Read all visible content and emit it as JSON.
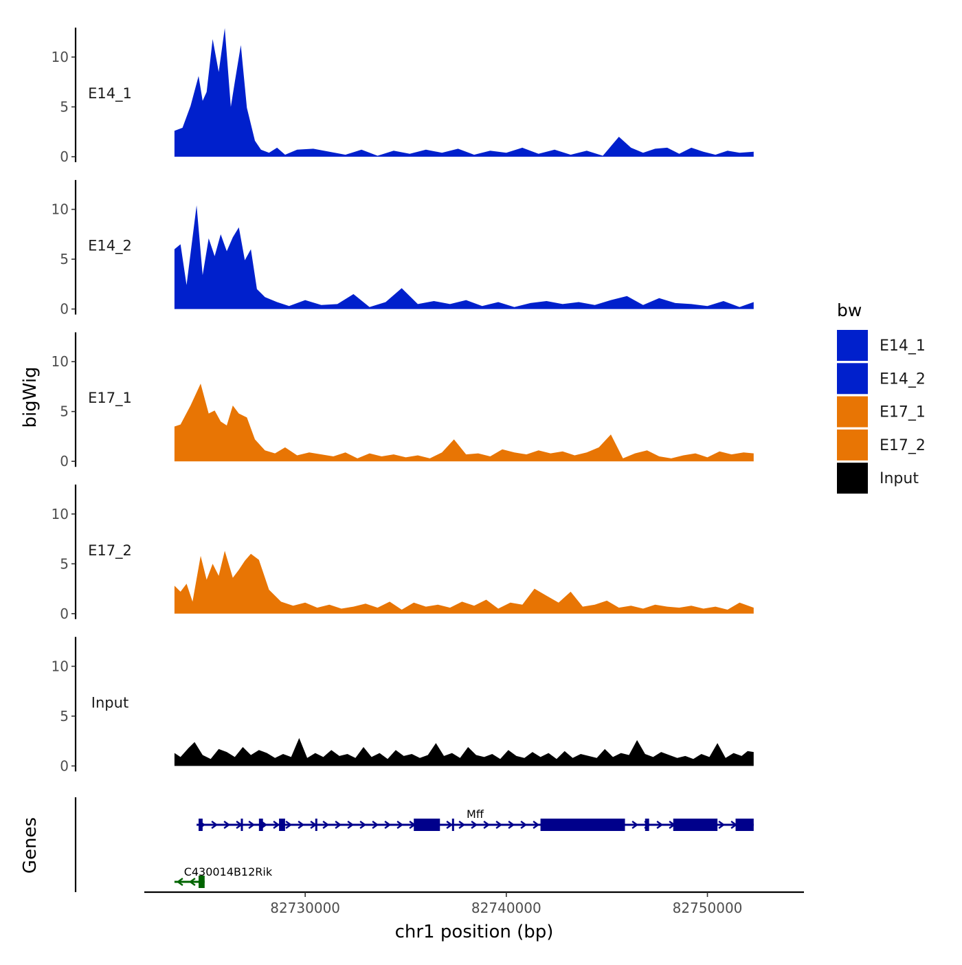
{
  "chart_data": {
    "type": "area",
    "title": "",
    "xlabel": "chr1 position (bp)",
    "ylabel": "bigWig",
    "genes_label": "Genes",
    "xlim": [
      82722000,
      82754800
    ],
    "data_range": [
      82723500,
      82752300
    ],
    "ylim": [
      0,
      13.5
    ],
    "y_ticks": [
      0,
      5,
      10
    ],
    "x_ticks": [
      82730000,
      82740000,
      82750000
    ],
    "x_tick_labels": [
      "82730000",
      "82740000",
      "82750000"
    ],
    "legend": {
      "title": "bw",
      "entries": [
        {
          "name": "E14_1",
          "color": "#0020CC"
        },
        {
          "name": "E14_2",
          "color": "#0020CC"
        },
        {
          "name": "E17_1",
          "color": "#E87504"
        },
        {
          "name": "E17_2",
          "color": "#E87504"
        },
        {
          "name": "Input",
          "color": "#000000"
        }
      ]
    },
    "series": [
      {
        "name": "E14_1",
        "color": "#0020CC",
        "x": [
          82723500,
          82723900,
          82724300,
          82724700,
          82724900,
          82725100,
          82725400,
          82725700,
          82726000,
          82726300,
          82726500,
          82726800,
          82727100,
          82727500,
          82727800,
          82728200,
          82728600,
          82729000,
          82729600,
          82730400,
          82731200,
          82732000,
          82732800,
          82733600,
          82734400,
          82735200,
          82736000,
          82736800,
          82737600,
          82738400,
          82739200,
          82740000,
          82740800,
          82741600,
          82742400,
          82743200,
          82744000,
          82744800,
          82745600,
          82746200,
          82746800,
          82747400,
          82748000,
          82748600,
          82749200,
          82749800,
          82750400,
          82751000,
          82751600,
          82752300
        ],
        "y": [
          2.6,
          2.9,
          5.1,
          8.1,
          5.6,
          6.5,
          11.8,
          8.5,
          12.9,
          5.0,
          7.5,
          11.2,
          4.9,
          1.6,
          0.7,
          0.4,
          0.9,
          0.2,
          0.7,
          0.8,
          0.5,
          0.2,
          0.7,
          0.1,
          0.6,
          0.3,
          0.7,
          0.4,
          0.8,
          0.2,
          0.6,
          0.4,
          0.9,
          0.3,
          0.7,
          0.2,
          0.6,
          0.1,
          2.0,
          0.9,
          0.4,
          0.8,
          0.9,
          0.3,
          0.9,
          0.5,
          0.2,
          0.6,
          0.4,
          0.5
        ]
      },
      {
        "name": "E14_2",
        "color": "#0020CC",
        "x": [
          82723500,
          82723800,
          82724100,
          82724600,
          82724900,
          82725200,
          82725500,
          82725800,
          82726100,
          82726400,
          82726700,
          82727000,
          82727300,
          82727600,
          82728000,
          82728600,
          82729200,
          82730000,
          82730800,
          82731600,
          82732400,
          82733200,
          82734000,
          82734800,
          82735600,
          82736400,
          82737200,
          82738000,
          82738800,
          82739600,
          82740400,
          82741200,
          82742000,
          82742800,
          82743600,
          82744400,
          82745200,
          82746000,
          82746800,
          82747600,
          82748400,
          82749200,
          82750000,
          82750800,
          82751600,
          82752300
        ],
        "y": [
          6.0,
          6.5,
          2.4,
          10.4,
          3.4,
          7.1,
          5.3,
          7.5,
          5.8,
          7.2,
          8.2,
          4.9,
          6.0,
          2.0,
          1.2,
          0.7,
          0.3,
          0.9,
          0.4,
          0.5,
          1.5,
          0.2,
          0.7,
          2.1,
          0.5,
          0.8,
          0.5,
          0.9,
          0.3,
          0.7,
          0.2,
          0.6,
          0.8,
          0.5,
          0.7,
          0.4,
          0.9,
          1.3,
          0.4,
          1.1,
          0.6,
          0.5,
          0.3,
          0.8,
          0.2,
          0.7
        ]
      },
      {
        "name": "E17_1",
        "color": "#E87504",
        "x": [
          82723500,
          82723800,
          82724300,
          82724800,
          82725200,
          82725500,
          82725800,
          82726100,
          82726400,
          82726700,
          82727100,
          82727500,
          82728000,
          82728500,
          82729000,
          82729600,
          82730200,
          82730800,
          82731400,
          82732000,
          82732600,
          82733200,
          82733800,
          82734400,
          82735000,
          82735600,
          82736200,
          82736800,
          82737400,
          82738000,
          82738600,
          82739200,
          82739800,
          82740400,
          82741000,
          82741600,
          82742200,
          82742800,
          82743400,
          82744000,
          82744600,
          82745200,
          82745800,
          82746400,
          82747000,
          82747600,
          82748200,
          82748800,
          82749400,
          82750000,
          82750600,
          82751200,
          82751800,
          82752300
        ],
        "y": [
          3.5,
          3.7,
          5.6,
          7.8,
          4.8,
          5.1,
          4.0,
          3.6,
          5.6,
          4.8,
          4.4,
          2.2,
          1.1,
          0.8,
          1.4,
          0.6,
          0.9,
          0.7,
          0.5,
          0.9,
          0.3,
          0.8,
          0.5,
          0.7,
          0.4,
          0.6,
          0.3,
          0.9,
          2.2,
          0.7,
          0.8,
          0.5,
          1.2,
          0.9,
          0.7,
          1.1,
          0.8,
          1.0,
          0.6,
          0.9,
          1.4,
          2.7,
          0.3,
          0.8,
          1.1,
          0.5,
          0.3,
          0.6,
          0.8,
          0.4,
          1.0,
          0.7,
          0.9,
          0.8
        ]
      },
      {
        "name": "E17_2",
        "color": "#E87504",
        "x": [
          82723500,
          82723800,
          82724100,
          82724400,
          82724800,
          82725100,
          82725400,
          82725700,
          82726000,
          82726400,
          82726700,
          82727000,
          82727300,
          82727700,
          82728200,
          82728800,
          82729400,
          82730000,
          82730600,
          82731200,
          82731800,
          82732400,
          82733000,
          82733600,
          82734200,
          82734800,
          82735400,
          82736000,
          82736600,
          82737200,
          82737800,
          82738400,
          82739000,
          82739600,
          82740200,
          82740800,
          82741400,
          82742000,
          82742600,
          82743200,
          82743800,
          82744400,
          82745000,
          82745600,
          82746200,
          82746800,
          82747400,
          82748000,
          82748600,
          82749200,
          82749800,
          82750400,
          82751000,
          82751600,
          82752300
        ],
        "y": [
          2.8,
          2.2,
          3.0,
          1.2,
          5.8,
          3.4,
          5.0,
          3.8,
          6.3,
          3.6,
          4.4,
          5.3,
          6.0,
          5.4,
          2.4,
          1.2,
          0.8,
          1.1,
          0.6,
          0.9,
          0.5,
          0.7,
          1.0,
          0.6,
          1.2,
          0.4,
          1.1,
          0.7,
          0.9,
          0.6,
          1.2,
          0.8,
          1.4,
          0.5,
          1.1,
          0.9,
          2.5,
          1.8,
          1.1,
          2.2,
          0.7,
          0.9,
          1.3,
          0.6,
          0.8,
          0.5,
          0.9,
          0.7,
          0.6,
          0.8,
          0.5,
          0.7,
          0.4,
          1.1,
          0.6
        ]
      },
      {
        "name": "Input",
        "color": "#000000",
        "x": [
          82723500,
          82723800,
          82724200,
          82724500,
          82724900,
          82725300,
          82725700,
          82726100,
          82726500,
          82726900,
          82727300,
          82727700,
          82728100,
          82728500,
          82728900,
          82729300,
          82729700,
          82730100,
          82730500,
          82730900,
          82731300,
          82731700,
          82732100,
          82732500,
          82732900,
          82733300,
          82733700,
          82734100,
          82734500,
          82734900,
          82735300,
          82735700,
          82736100,
          82736500,
          82736900,
          82737300,
          82737700,
          82738100,
          82738500,
          82738900,
          82739300,
          82739700,
          82740100,
          82740500,
          82740900,
          82741300,
          82741700,
          82742100,
          82742500,
          82742900,
          82743300,
          82743700,
          82744100,
          82744500,
          82744900,
          82745300,
          82745700,
          82746100,
          82746500,
          82746900,
          82747300,
          82747700,
          82748100,
          82748500,
          82748900,
          82749300,
          82749700,
          82750100,
          82750500,
          82750900,
          82751300,
          82751700,
          82752000,
          82752300
        ],
        "y": [
          1.3,
          0.9,
          1.8,
          2.4,
          1.1,
          0.7,
          1.7,
          1.4,
          0.9,
          1.9,
          1.1,
          1.6,
          1.3,
          0.8,
          1.2,
          0.9,
          2.8,
          0.8,
          1.3,
          0.9,
          1.6,
          1.0,
          1.2,
          0.8,
          1.9,
          0.9,
          1.3,
          0.7,
          1.6,
          1.0,
          1.2,
          0.8,
          1.1,
          2.3,
          1.0,
          1.3,
          0.8,
          1.9,
          1.1,
          0.9,
          1.2,
          0.7,
          1.6,
          1.0,
          0.8,
          1.4,
          0.9,
          1.3,
          0.7,
          1.5,
          0.8,
          1.2,
          1.0,
          0.8,
          1.7,
          0.9,
          1.3,
          1.1,
          2.6,
          1.2,
          0.9,
          1.4,
          1.1,
          0.8,
          1.0,
          0.7,
          1.2,
          0.9,
          2.3,
          0.8,
          1.3,
          1.0,
          1.5,
          1.4
        ]
      }
    ],
    "genes": [
      {
        "name": "Mff",
        "strand": "+",
        "color": "#00008B",
        "start": 82724600,
        "end": 82752300,
        "exons": [
          [
            82724700,
            82724900
          ],
          [
            82726800,
            82726900
          ],
          [
            82727700,
            82727900
          ],
          [
            82728700,
            82729000
          ],
          [
            82730500,
            82730600
          ],
          [
            82735400,
            82736700
          ],
          [
            82737300,
            82737400
          ],
          [
            82741700,
            82745900
          ],
          [
            82746900,
            82747100
          ],
          [
            82748300,
            82750500
          ],
          [
            82751400,
            82752300
          ]
        ]
      },
      {
        "name": "C430014B12Rik",
        "strand": "-",
        "color": "#006400",
        "start": 82723500,
        "end": 82725000,
        "exons": [
          [
            82724700,
            82725000
          ]
        ]
      }
    ]
  }
}
